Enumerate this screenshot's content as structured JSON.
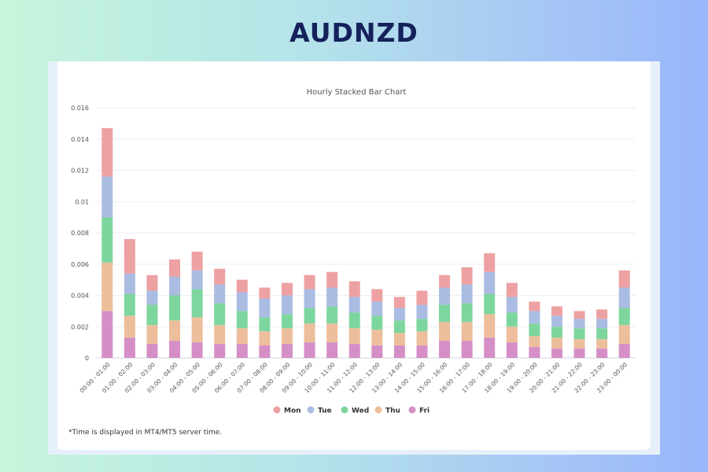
{
  "header": {
    "title": "AUDNZD"
  },
  "footnote": "*Time is displayed in MT4/MT5 server time.",
  "colors": {
    "Mon": "#eda1a2",
    "Tue": "#abbce3",
    "Wed": "#7dd69d",
    "Thu": "#edbe9b",
    "Fri": "#d58fc6"
  },
  "chart_data": {
    "type": "bar",
    "stacked": true,
    "title": "Hourly Stacked Bar Chart",
    "xlabel": "",
    "ylabel": "",
    "ylim": [
      0,
      0.016
    ],
    "yticks": [
      "0",
      "0.002",
      "0.004",
      "0.006",
      "0.008",
      "0.01",
      "0.012",
      "0.014",
      "0.016"
    ],
    "grid": true,
    "legend_position": "bottom",
    "categories": [
      "00:00 - 01:00",
      "01:00 - 02:00",
      "02:00 - 03:00",
      "03:00 - 04:00",
      "04:00 - 05:00",
      "05:00 - 06:00",
      "06:00 - 07:00",
      "07:00 - 08:00",
      "08:00 - 09:00",
      "09:00 - 10:00",
      "10:00 - 11:00",
      "11:00 - 12:00",
      "12:00 - 13:00",
      "13:00 - 14:00",
      "14:00 - 15:00",
      "15:00 - 16:00",
      "16:00 - 17:00",
      "17:00 - 18:00",
      "18:00 - 19:00",
      "19:00 - 20:00",
      "20:00 - 21:00",
      "21:00 - 22:00",
      "22:00 - 23:00",
      "23:00 - 00:00"
    ],
    "series": [
      {
        "name": "Fri",
        "values": [
          0.003,
          0.0013,
          0.0009,
          0.0011,
          0.001,
          0.0009,
          0.0009,
          0.0008,
          0.0009,
          0.001,
          0.001,
          0.0009,
          0.0008,
          0.0008,
          0.0008,
          0.0011,
          0.0011,
          0.0013,
          0.001,
          0.0007,
          0.0006,
          0.0006,
          0.0006,
          0.0009
        ]
      },
      {
        "name": "Thu",
        "values": [
          0.0031,
          0.0014,
          0.0012,
          0.0013,
          0.0016,
          0.0012,
          0.001,
          0.0009,
          0.001,
          0.0012,
          0.0012,
          0.001,
          0.001,
          0.0008,
          0.0009,
          0.0012,
          0.0012,
          0.0015,
          0.001,
          0.0007,
          0.0007,
          0.0006,
          0.0006,
          0.0012
        ]
      },
      {
        "name": "Wed",
        "values": [
          0.0029,
          0.0014,
          0.0013,
          0.0016,
          0.0018,
          0.0014,
          0.0011,
          0.0009,
          0.0009,
          0.001,
          0.0011,
          0.001,
          0.0009,
          0.0008,
          0.0008,
          0.0011,
          0.0012,
          0.0013,
          0.0009,
          0.0008,
          0.0007,
          0.0007,
          0.0007,
          0.0011
        ]
      },
      {
        "name": "Tue",
        "values": [
          0.0026,
          0.0013,
          0.0009,
          0.0012,
          0.0012,
          0.0012,
          0.0012,
          0.0012,
          0.0012,
          0.0012,
          0.0012,
          0.001,
          0.0009,
          0.0008,
          0.0009,
          0.0011,
          0.0012,
          0.0014,
          0.001,
          0.0008,
          0.0007,
          0.0006,
          0.0006,
          0.0013
        ]
      },
      {
        "name": "Mon",
        "values": [
          0.0031,
          0.0022,
          0.001,
          0.0011,
          0.0012,
          0.001,
          0.0008,
          0.0007,
          0.0008,
          0.0009,
          0.001,
          0.001,
          0.0008,
          0.0007,
          0.0009,
          0.0008,
          0.0011,
          0.0012,
          0.0009,
          0.0006,
          0.0006,
          0.0005,
          0.0006,
          0.0011
        ]
      }
    ],
    "legend_order": [
      "Mon",
      "Tue",
      "Wed",
      "Thu",
      "Fri"
    ]
  }
}
